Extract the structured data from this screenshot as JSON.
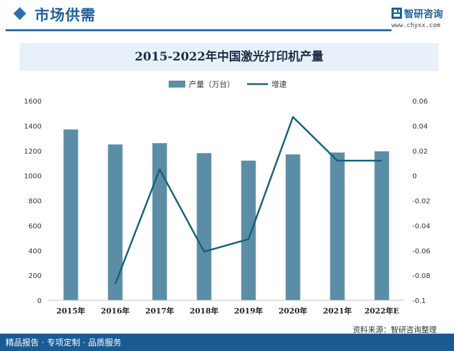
{
  "header": {
    "title": "市场供需"
  },
  "brand": {
    "name": "智研咨询",
    "url": "www.chyxx.com"
  },
  "footer": {
    "tagline": "精品报告 · 专项定制 · 品质服务",
    "source": "资料来源：智研咨询整理"
  },
  "chart_data": {
    "type": "bar",
    "title": "2015-2022年中国激光打印机产量",
    "categories": [
      "2015年",
      "2016年",
      "2017年",
      "2018年",
      "2019年",
      "2020年",
      "2021年",
      "2022年E"
    ],
    "series": [
      {
        "name": "产量（万台）",
        "type": "bar",
        "axis": "left",
        "color": "#5b8ea6",
        "values": [
          1370,
          1250,
          1260,
          1180,
          1120,
          1170,
          1185,
          1195
        ]
      },
      {
        "name": "增速",
        "type": "line",
        "axis": "right",
        "color": "#1a5f7a",
        "values": [
          null,
          -0.087,
          0.005,
          -0.061,
          -0.051,
          0.047,
          0.012,
          0.012
        ]
      }
    ],
    "left_axis": {
      "min": 0,
      "max": 1600,
      "ticks": [
        "0",
        "200",
        "400",
        "600",
        "800",
        "1000",
        "1200",
        "1400",
        "1600"
      ]
    },
    "right_axis": {
      "min": -0.1,
      "max": 0.06,
      "ticks": [
        "-0.1",
        "-0.08",
        "-0.06",
        "-0.04",
        "-0.02",
        "0",
        "0.02",
        "0.04",
        "0.06"
      ]
    },
    "legend_position": "top-center",
    "grid": false
  }
}
